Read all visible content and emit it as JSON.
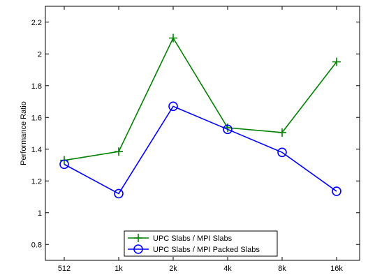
{
  "chart_data": {
    "type": "line",
    "title": "",
    "xlabel": "",
    "ylabel": "Performance Ratio",
    "categories": [
      "512",
      "1k",
      "2k",
      "4k",
      "8k",
      "16k"
    ],
    "ylim": [
      0.7,
      2.3
    ],
    "yticks": [
      0.8,
      1,
      1.2,
      1.4,
      1.6,
      1.8,
      2,
      2.2
    ],
    "ytick_labels": [
      "0.8",
      "1",
      "1.2",
      "1.4",
      "1.6",
      "1.8",
      "2",
      "2.2"
    ],
    "grid": false,
    "legend_position": "bottom-center",
    "series": [
      {
        "name": "UPC Slabs / MPI Slabs",
        "marker": "plus",
        "color": "#008000",
        "values": [
          1.33,
          1.385,
          2.1,
          1.535,
          1.505,
          1.95
        ]
      },
      {
        "name": "UPC Slabs / MPI Packed Slabs",
        "marker": "circle",
        "color": "#0000ff",
        "values": [
          1.305,
          1.12,
          1.67,
          1.525,
          1.38,
          1.135
        ]
      }
    ]
  }
}
